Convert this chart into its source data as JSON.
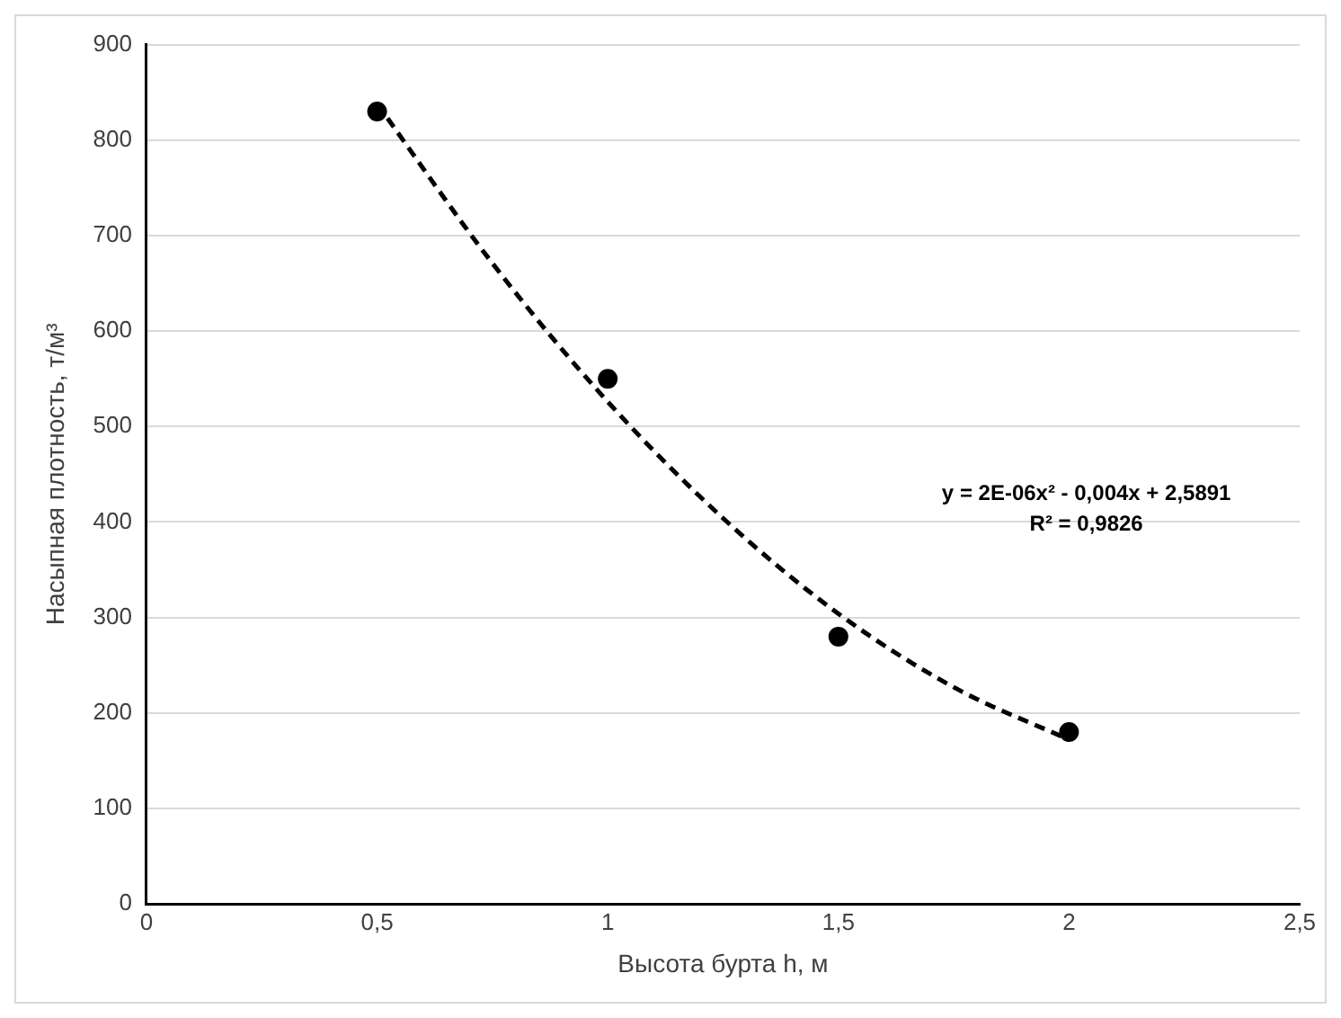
{
  "chart_data": {
    "type": "scatter",
    "xlabel": "Высота бурта h, м",
    "ylabel": "Насыпная плотность, т/м³",
    "series": [
      {
        "type": "scatter",
        "color": "#000000",
        "x": [
          0.5,
          1,
          1.5,
          2
        ],
        "values": [
          830,
          550,
          280,
          180
        ],
        "marker": "circle"
      },
      {
        "type": "line",
        "color": "#000000",
        "x": [
          0.5,
          0.75,
          1,
          1.25,
          1.5,
          1.75,
          2
        ],
        "values": [
          838,
          671,
          526,
          404,
          304,
          227,
          172
        ],
        "marker": "none",
        "line_style": "dashed"
      }
    ],
    "annotations": [
      "y = 2E-06x² - 0,004x + 2,5891",
      "R² = 0,9826"
    ],
    "xlim": [
      0,
      2.5
    ],
    "xticks": [
      0,
      {
        "value": 0.5,
        "label": "0,5"
      },
      1,
      {
        "value": 1.5,
        "label": "1,5"
      },
      2,
      {
        "value": 2.5,
        "label": "2,5"
      }
    ],
    "ylim": [
      0,
      900
    ],
    "yticks": [
      0,
      100,
      200,
      300,
      400,
      500,
      600,
      700,
      800,
      900
    ],
    "grid": "y",
    "legend": false
  }
}
